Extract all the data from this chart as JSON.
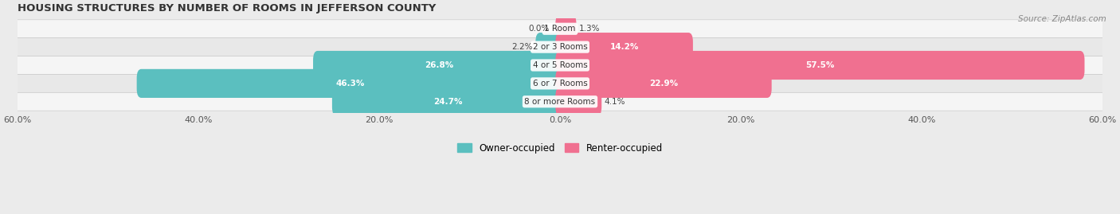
{
  "title": "HOUSING STRUCTURES BY NUMBER OF ROOMS IN JEFFERSON COUNTY",
  "source": "Source: ZipAtlas.com",
  "categories": [
    "1 Room",
    "2 or 3 Rooms",
    "4 or 5 Rooms",
    "6 or 7 Rooms",
    "8 or more Rooms"
  ],
  "owner_values": [
    0.0,
    2.2,
    26.8,
    46.3,
    24.7
  ],
  "renter_values": [
    1.3,
    14.2,
    57.5,
    22.9,
    4.1
  ],
  "owner_color": "#5bbfbf",
  "renter_color": "#f07090",
  "bar_height": 0.58,
  "xlim": [
    -60,
    60
  ],
  "xticks": [
    -60,
    -40,
    -20,
    0,
    20,
    40,
    60
  ],
  "xticklabels": [
    "60.0%",
    "40.0%",
    "20.0%",
    "0.0%",
    "20.0%",
    "40.0%",
    "60.0%"
  ],
  "bg_color": "#ebebeb",
  "row_colors": [
    "#f5f5f5",
    "#e8e8e8"
  ],
  "label_color": "#444444",
  "title_color": "#333333",
  "owner_label": "Owner-occupied",
  "renter_label": "Renter-occupied",
  "white_label_threshold": 8.0
}
